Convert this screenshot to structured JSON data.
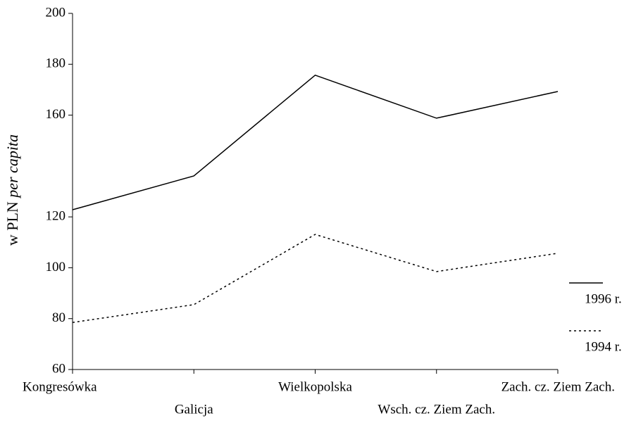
{
  "chart_data": {
    "type": "line",
    "ylabel": "w PLN",
    "ylabel_italic": "per capita",
    "categories": [
      "Kongresówka",
      "Galicja",
      "Wielkopolska",
      "Wsch. cz. Ziem Zach.",
      "Zach. cz. Ziem Zach."
    ],
    "series": [
      {
        "name": "1996 r.",
        "color": "#000000",
        "dash": "solid",
        "values": [
          122.8,
          136.1,
          175.7,
          158.8,
          169.3
        ]
      },
      {
        "name": "1994 r.",
        "color": "#000000",
        "dash": "dotted",
        "values": [
          78.5,
          85.5,
          113.1,
          98.5,
          105.7
        ]
      }
    ],
    "ylim": [
      60,
      200
    ],
    "yticks": [
      60,
      80,
      100,
      120,
      160,
      180,
      200
    ],
    "grid": false,
    "legend": "right"
  }
}
